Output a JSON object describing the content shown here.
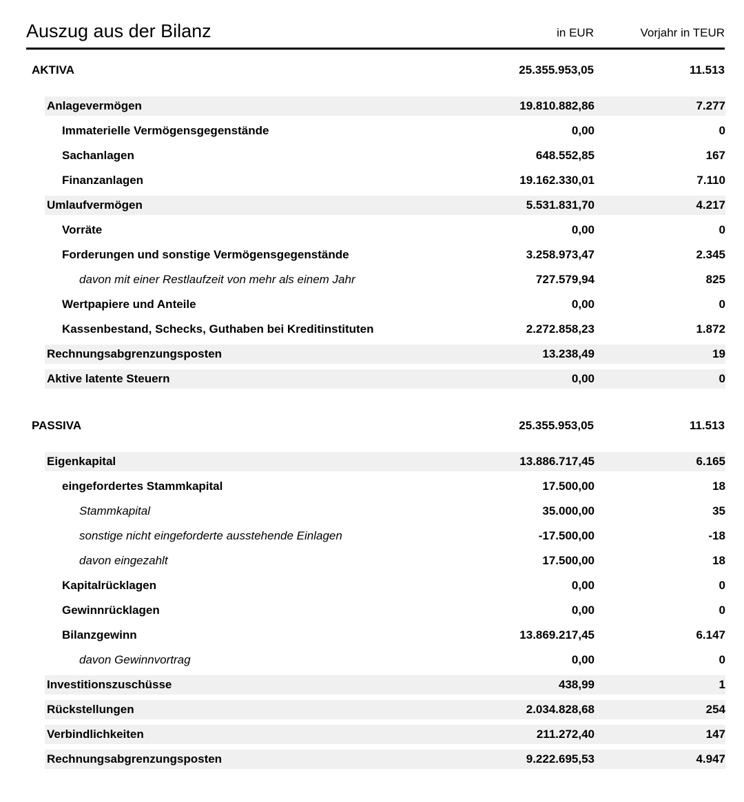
{
  "header": {
    "title": "Auszug aus der Bilanz",
    "col_eur": "in EUR",
    "col_prev": "Vorjahr in TEUR"
  },
  "colors": {
    "row_shade": "#f0f0f0",
    "text": "#000000",
    "rule": "#000000"
  },
  "sections": [
    {
      "total_row": {
        "label": "AKTIVA",
        "eur": "25.355.953,05",
        "prev": "11.513"
      },
      "rows": [
        {
          "label": "Anlagevermögen",
          "eur": "19.810.882,86",
          "prev": "7.277",
          "level": 1,
          "shaded": true,
          "italic": false
        },
        {
          "label": "Immaterielle Vermögensgegenstände",
          "eur": "0,00",
          "prev": "0",
          "level": 2,
          "shaded": false,
          "italic": false
        },
        {
          "label": "Sachanlagen",
          "eur": "648.552,85",
          "prev": "167",
          "level": 2,
          "shaded": false,
          "italic": false
        },
        {
          "label": "Finanzanlagen",
          "eur": "19.162.330,01",
          "prev": "7.110",
          "level": 2,
          "shaded": false,
          "italic": false
        },
        {
          "label": "Umlaufvermögen",
          "eur": "5.531.831,70",
          "prev": "4.217",
          "level": 1,
          "shaded": true,
          "italic": false
        },
        {
          "label": "Vorräte",
          "eur": "0,00",
          "prev": "0",
          "level": 2,
          "shaded": false,
          "italic": false
        },
        {
          "label": "Forderungen und sonstige Vermögensgegenstände",
          "eur": "3.258.973,47",
          "prev": "2.345",
          "level": 2,
          "shaded": false,
          "italic": false
        },
        {
          "label": "davon mit einer Restlaufzeit von mehr als einem Jahr",
          "eur": "727.579,94",
          "prev": "825",
          "level": 3,
          "shaded": false,
          "italic": true
        },
        {
          "label": "Wertpapiere und Anteile",
          "eur": "0,00",
          "prev": "0",
          "level": 2,
          "shaded": false,
          "italic": false
        },
        {
          "label": "Kassenbestand, Schecks, Guthaben bei Kreditinstituten",
          "eur": "2.272.858,23",
          "prev": "1.872",
          "level": 2,
          "shaded": false,
          "italic": false
        },
        {
          "label": "Rechnungsabgrenzungsposten",
          "eur": "13.238,49",
          "prev": "19",
          "level": 1,
          "shaded": true,
          "italic": false
        },
        {
          "label": "Aktive latente Steuern",
          "eur": "0,00",
          "prev": "0",
          "level": 1,
          "shaded": true,
          "italic": false
        }
      ]
    },
    {
      "total_row": {
        "label": "PASSIVA",
        "eur": "25.355.953,05",
        "prev": "11.513"
      },
      "rows": [
        {
          "label": "Eigenkapital",
          "eur": "13.886.717,45",
          "prev": "6.165",
          "level": 1,
          "shaded": true,
          "italic": false
        },
        {
          "label": "eingefordertes Stammkapital",
          "eur": "17.500,00",
          "prev": "18",
          "level": 2,
          "shaded": false,
          "italic": false
        },
        {
          "label": "Stammkapital",
          "eur": "35.000,00",
          "prev": "35",
          "level": 3,
          "shaded": false,
          "italic": true
        },
        {
          "label": "sonstige nicht eingeforderte ausstehende Einlagen",
          "eur": "-17.500,00",
          "prev": "-18",
          "level": 3,
          "shaded": false,
          "italic": true
        },
        {
          "label": "davon eingezahlt",
          "eur": "17.500,00",
          "prev": "18",
          "level": 3,
          "shaded": false,
          "italic": true
        },
        {
          "label": "Kapitalrücklagen",
          "eur": "0,00",
          "prev": "0",
          "level": 2,
          "shaded": false,
          "italic": false
        },
        {
          "label": "Gewinnrücklagen",
          "eur": "0,00",
          "prev": "0",
          "level": 2,
          "shaded": false,
          "italic": false
        },
        {
          "label": "Bilanzgewinn",
          "eur": "13.869.217,45",
          "prev": "6.147",
          "level": 2,
          "shaded": false,
          "italic": false
        },
        {
          "label": "davon Gewinnvortrag",
          "eur": "0,00",
          "prev": "0",
          "level": 3,
          "shaded": false,
          "italic": true
        },
        {
          "label": "Investitionszuschüsse",
          "eur": "438,99",
          "prev": "1",
          "level": 1,
          "shaded": true,
          "italic": false
        },
        {
          "label": "Rückstellungen",
          "eur": "2.034.828,68",
          "prev": "254",
          "level": 1,
          "shaded": true,
          "italic": false
        },
        {
          "label": "Verbindlichkeiten",
          "eur": "211.272,40",
          "prev": "147",
          "level": 1,
          "shaded": true,
          "italic": false
        },
        {
          "label": "Rechnungsabgrenzungsposten",
          "eur": "9.222.695,53",
          "prev": "4.947",
          "level": 1,
          "shaded": true,
          "italic": false
        }
      ]
    }
  ]
}
